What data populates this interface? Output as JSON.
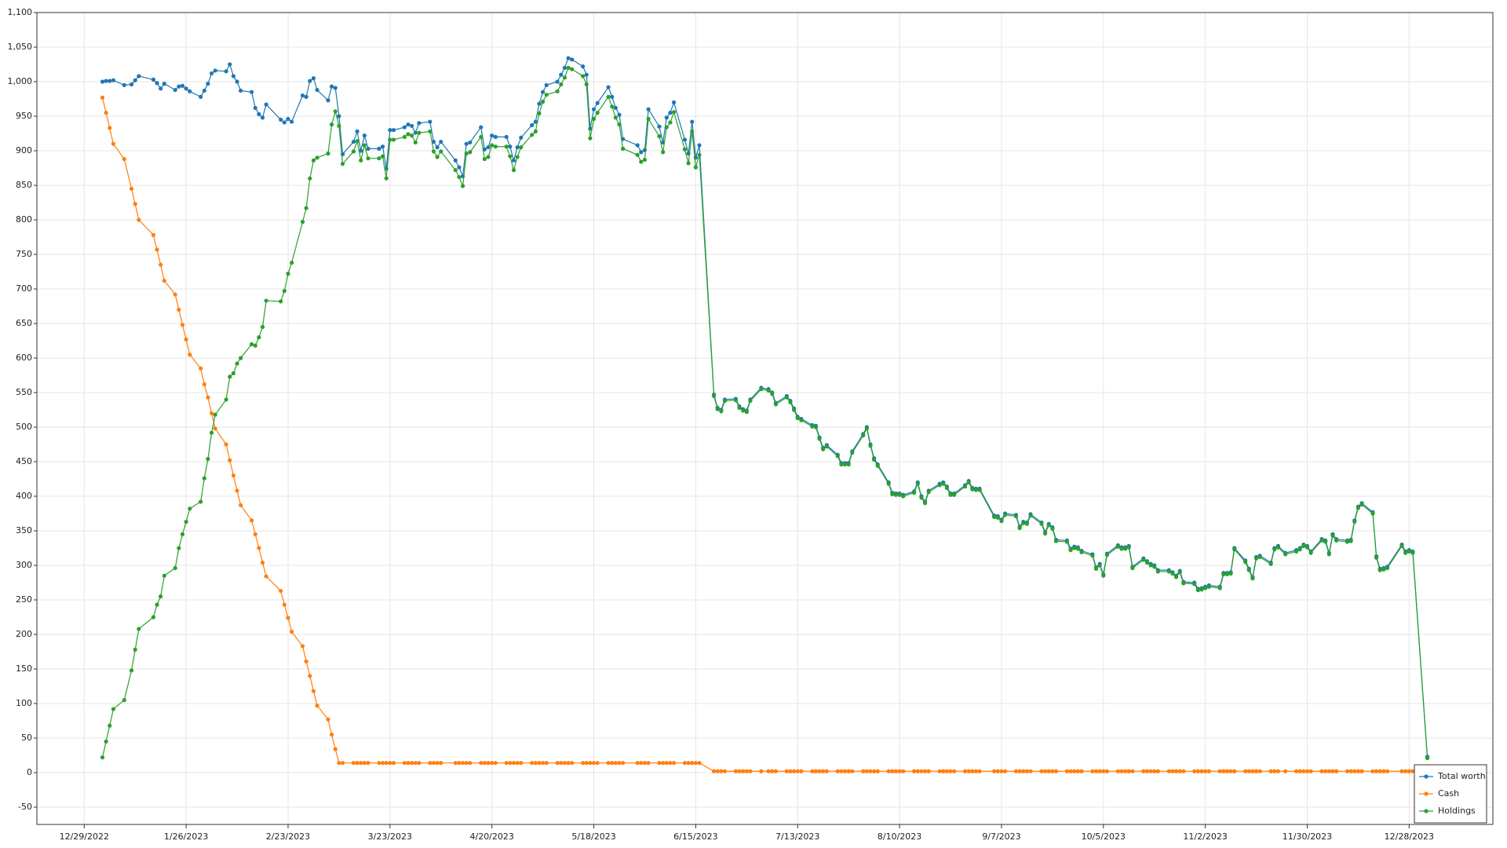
{
  "chart_data": {
    "type": "line",
    "x": [
      "2023-01-03",
      "2023-01-04",
      "2023-01-05",
      "2023-01-06",
      "2023-01-09",
      "2023-01-11",
      "2023-01-12",
      "2023-01-13",
      "2023-01-17",
      "2023-01-18",
      "2023-01-19",
      "2023-01-20",
      "2023-01-23",
      "2023-01-24",
      "2023-01-25",
      "2023-01-26",
      "2023-01-27",
      "2023-01-30",
      "2023-01-31",
      "2023-02-01",
      "2023-02-02",
      "2023-02-03",
      "2023-02-06",
      "2023-02-07",
      "2023-02-08",
      "2023-02-09",
      "2023-02-10",
      "2023-02-13",
      "2023-02-14",
      "2023-02-15",
      "2023-02-16",
      "2023-02-17",
      "2023-02-21",
      "2023-02-22",
      "2023-02-23",
      "2023-02-24",
      "2023-02-27",
      "2023-02-28",
      "2023-03-01",
      "2023-03-02",
      "2023-03-03",
      "2023-03-06",
      "2023-03-07",
      "2023-03-08",
      "2023-03-09",
      "2023-03-10",
      "2023-03-13",
      "2023-03-14",
      "2023-03-15",
      "2023-03-16",
      "2023-03-17",
      "2023-03-20",
      "2023-03-21",
      "2023-03-22",
      "2023-03-23",
      "2023-03-24",
      "2023-03-27",
      "2023-03-28",
      "2023-03-29",
      "2023-03-30",
      "2023-03-31",
      "2023-04-03",
      "2023-04-04",
      "2023-04-05",
      "2023-04-06",
      "2023-04-10",
      "2023-04-11",
      "2023-04-12",
      "2023-04-13",
      "2023-04-14",
      "2023-04-17",
      "2023-04-18",
      "2023-04-19",
      "2023-04-20",
      "2023-04-21",
      "2023-04-24",
      "2023-04-25",
      "2023-04-26",
      "2023-04-27",
      "2023-04-28",
      "2023-05-01",
      "2023-05-02",
      "2023-05-03",
      "2023-05-04",
      "2023-05-05",
      "2023-05-08",
      "2023-05-09",
      "2023-05-10",
      "2023-05-11",
      "2023-05-12",
      "2023-05-15",
      "2023-05-16",
      "2023-05-17",
      "2023-05-18",
      "2023-05-19",
      "2023-05-22",
      "2023-05-23",
      "2023-05-24",
      "2023-05-25",
      "2023-05-26",
      "2023-05-30",
      "2023-05-31",
      "2023-06-01",
      "2023-06-02",
      "2023-06-05",
      "2023-06-06",
      "2023-06-07",
      "2023-06-08",
      "2023-06-09",
      "2023-06-12",
      "2023-06-13",
      "2023-06-14",
      "2023-06-15",
      "2023-06-16",
      "2023-06-20",
      "2023-06-21",
      "2023-06-22",
      "2023-06-23",
      "2023-06-26",
      "2023-06-27",
      "2023-06-28",
      "2023-06-29",
      "2023-06-30",
      "2023-07-03",
      "2023-07-05",
      "2023-07-06",
      "2023-07-07",
      "2023-07-10",
      "2023-07-11",
      "2023-07-12",
      "2023-07-13",
      "2023-07-14",
      "2023-07-17",
      "2023-07-18",
      "2023-07-19",
      "2023-07-20",
      "2023-07-21",
      "2023-07-24",
      "2023-07-25",
      "2023-07-26",
      "2023-07-27",
      "2023-07-28",
      "2023-07-31",
      "2023-08-01",
      "2023-08-02",
      "2023-08-03",
      "2023-08-04",
      "2023-08-07",
      "2023-08-08",
      "2023-08-09",
      "2023-08-10",
      "2023-08-11",
      "2023-08-14",
      "2023-08-15",
      "2023-08-16",
      "2023-08-17",
      "2023-08-18",
      "2023-08-21",
      "2023-08-22",
      "2023-08-23",
      "2023-08-24",
      "2023-08-25",
      "2023-08-28",
      "2023-08-29",
      "2023-08-30",
      "2023-08-31",
      "2023-09-01",
      "2023-09-05",
      "2023-09-06",
      "2023-09-07",
      "2023-09-08",
      "2023-09-11",
      "2023-09-12",
      "2023-09-13",
      "2023-09-14",
      "2023-09-15",
      "2023-09-18",
      "2023-09-19",
      "2023-09-20",
      "2023-09-21",
      "2023-09-22",
      "2023-09-25",
      "2023-09-26",
      "2023-09-27",
      "2023-09-28",
      "2023-09-29",
      "2023-10-02",
      "2023-10-03",
      "2023-10-04",
      "2023-10-05",
      "2023-10-06",
      "2023-10-09",
      "2023-10-10",
      "2023-10-11",
      "2023-10-12",
      "2023-10-13",
      "2023-10-16",
      "2023-10-17",
      "2023-10-18",
      "2023-10-19",
      "2023-10-20",
      "2023-10-23",
      "2023-10-24",
      "2023-10-25",
      "2023-10-26",
      "2023-10-27",
      "2023-10-30",
      "2023-10-31",
      "2023-11-01",
      "2023-11-02",
      "2023-11-03",
      "2023-11-06",
      "2023-11-07",
      "2023-11-08",
      "2023-11-09",
      "2023-11-10",
      "2023-11-13",
      "2023-11-14",
      "2023-11-15",
      "2023-11-16",
      "2023-11-17",
      "2023-11-20",
      "2023-11-21",
      "2023-11-22",
      "2023-11-24",
      "2023-11-27",
      "2023-11-28",
      "2023-11-29",
      "2023-11-30",
      "2023-12-01",
      "2023-12-04",
      "2023-12-05",
      "2023-12-06",
      "2023-12-07",
      "2023-12-08",
      "2023-12-11",
      "2023-12-12",
      "2023-12-13",
      "2023-12-14",
      "2023-12-15",
      "2023-12-18",
      "2023-12-19",
      "2023-12-20",
      "2023-12-21",
      "2023-12-22",
      "2023-12-26",
      "2023-12-27",
      "2023-12-28",
      "2023-12-29",
      "2024-01-02"
    ],
    "series": [
      {
        "name": "Total worth",
        "color": "#1f77b4",
        "values": [
          1000,
          1001,
          1001,
          1002,
          995,
          996,
          1002,
          1008,
          1003,
          998,
          990,
          997,
          988,
          993,
          994,
          990,
          986,
          978,
          987,
          997,
          1012,
          1016,
          1015,
          1025,
          1008,
          1000,
          987,
          985,
          962,
          953,
          948,
          967,
          945,
          941,
          946,
          942,
          980,
          978,
          1001,
          1005,
          988,
          973,
          993,
          991,
          950,
          895,
          913,
          928,
          900,
          922,
          903,
          903,
          906,
          874,
          930,
          930,
          934,
          938,
          936,
          926,
          940,
          942,
          913,
          905,
          913,
          886,
          876,
          863,
          910,
          912,
          934,
          902,
          905,
          922,
          920,
          920,
          906,
          886,
          905,
          919,
          937,
          942,
          968,
          985,
          995,
          1000,
          1010,
          1020,
          1034,
          1032,
          1022,
          1010,
          932,
          960,
          969,
          992,
          978,
          962,
          952,
          917,
          908,
          898,
          901,
          960,
          935,
          912,
          948,
          955,
          970,
          916,
          896,
          942,
          890,
          908,
          547,
          528,
          525,
          540,
          541,
          530,
          526,
          524,
          540,
          557,
          555,
          550,
          535,
          545,
          538,
          527,
          515,
          512,
          503,
          502,
          485,
          470,
          474,
          460,
          448,
          448,
          448,
          465,
          490,
          500,
          475,
          455,
          446,
          420,
          405,
          404,
          404,
          402,
          407,
          420,
          400,
          392,
          408,
          418,
          420,
          414,
          404,
          404,
          416,
          422,
          412,
          411,
          411,
          372,
          371,
          366,
          375,
          373,
          356,
          363,
          362,
          374,
          362,
          348,
          360,
          355,
          337,
          336,
          324,
          327,
          326,
          321,
          316,
          297,
          302,
          287,
          317,
          329,
          326,
          326,
          328,
          298,
          310,
          306,
          302,
          300,
          293,
          293,
          290,
          285,
          292,
          276,
          275,
          266,
          267,
          269,
          271,
          269,
          289,
          289,
          290,
          325,
          307,
          295,
          283,
          312,
          314,
          304,
          325,
          328,
          318,
          322,
          325,
          330,
          328,
          320,
          338,
          336,
          318,
          345,
          338,
          336,
          337,
          365,
          385,
          390,
          377,
          313,
          295,
          296,
          298,
          330,
          320,
          322,
          320,
          23
        ]
      },
      {
        "name": "Cash",
        "color": "#ff7f0e",
        "values": [
          977,
          955,
          933,
          910,
          888,
          845,
          823,
          800,
          778,
          757,
          735,
          712,
          692,
          670,
          648,
          627,
          605,
          585,
          562,
          543,
          520,
          498,
          475,
          452,
          430,
          408,
          387,
          365,
          345,
          325,
          304,
          284,
          263,
          243,
          224,
          204,
          183,
          161,
          140,
          118,
          97,
          77,
          55,
          34,
          14,
          14,
          14,
          14,
          14,
          14,
          14,
          14,
          14,
          14,
          14,
          14,
          14,
          14,
          14,
          14,
          14,
          14,
          14,
          14,
          14,
          14,
          14,
          14,
          14,
          14,
          14,
          14,
          14,
          14,
          14,
          14,
          14,
          14,
          14,
          14,
          14,
          14,
          14,
          14,
          14,
          14,
          14,
          14,
          14,
          14,
          14,
          14,
          14,
          14,
          14,
          14,
          14,
          14,
          14,
          14,
          14,
          14,
          14,
          14,
          14,
          14,
          14,
          14,
          14,
          14,
          14,
          14,
          14,
          14,
          2,
          2,
          2,
          2,
          2,
          2,
          2,
          2,
          2,
          2,
          2,
          2,
          2,
          2,
          2,
          2,
          2,
          2,
          2,
          2,
          2,
          2,
          2,
          2,
          2,
          2,
          2,
          2,
          2,
          2,
          2,
          2,
          2,
          2,
          2,
          2,
          2,
          2,
          2,
          2,
          2,
          2,
          2,
          2,
          2,
          2,
          2,
          2,
          2,
          2,
          2,
          2,
          2,
          2,
          2,
          2,
          2,
          2,
          2,
          2,
          2,
          2,
          2,
          2,
          2,
          2,
          2,
          2,
          2,
          2,
          2,
          2,
          2,
          2,
          2,
          2,
          2,
          2,
          2,
          2,
          2,
          2,
          2,
          2,
          2,
          2,
          2,
          2,
          2,
          2,
          2,
          2,
          2,
          2,
          2,
          2,
          2,
          2,
          2,
          2,
          2,
          2,
          2,
          2,
          2,
          2,
          2,
          2,
          2,
          2,
          2,
          2,
          2,
          2,
          2,
          2,
          2,
          2,
          2,
          2,
          2,
          2,
          2,
          2,
          2,
          2,
          2,
          2,
          2,
          2,
          2,
          2,
          2,
          2,
          2,
          2
        ]
      },
      {
        "name": "Holdings",
        "color": "#2ca02c",
        "values": [
          22,
          45,
          68,
          92,
          105,
          148,
          178,
          208,
          225,
          243,
          255,
          285,
          296,
          325,
          345,
          363,
          382,
          392,
          426,
          454,
          492,
          518,
          540,
          573,
          578,
          592,
          600,
          620,
          618,
          630,
          645,
          683,
          682,
          697,
          722,
          738,
          797,
          817,
          860,
          886,
          890,
          896,
          938,
          957,
          936,
          881,
          899,
          914,
          886,
          908,
          889,
          889,
          892,
          860,
          916,
          916,
          920,
          924,
          922,
          912,
          926,
          928,
          899,
          891,
          899,
          872,
          862,
          849,
          896,
          898,
          920,
          888,
          891,
          908,
          906,
          906,
          892,
          872,
          891,
          905,
          923,
          928,
          954,
          971,
          981,
          986,
          996,
          1006,
          1020,
          1018,
          1008,
          996,
          918,
          946,
          955,
          978,
          964,
          948,
          938,
          903,
          894,
          884,
          887,
          946,
          921,
          898,
          934,
          941,
          956,
          902,
          882,
          928,
          876,
          894,
          545,
          526,
          523,
          538,
          539,
          528,
          524,
          522,
          538,
          555,
          553,
          548,
          533,
          543,
          536,
          525,
          513,
          510,
          501,
          500,
          483,
          468,
          472,
          458,
          446,
          446,
          446,
          463,
          488,
          498,
          473,
          453,
          444,
          418,
          403,
          402,
          402,
          400,
          405,
          418,
          398,
          390,
          406,
          416,
          418,
          412,
          402,
          402,
          414,
          420,
          410,
          409,
          409,
          370,
          369,
          364,
          373,
          371,
          354,
          361,
          360,
          372,
          360,
          346,
          358,
          353,
          335,
          334,
          322,
          325,
          324,
          319,
          314,
          295,
          300,
          285,
          315,
          327,
          324,
          324,
          326,
          296,
          308,
          304,
          300,
          298,
          291,
          291,
          288,
          283,
          290,
          274,
          273,
          264,
          265,
          267,
          269,
          267,
          287,
          287,
          288,
          323,
          305,
          293,
          281,
          310,
          312,
          302,
          323,
          326,
          316,
          320,
          323,
          328,
          326,
          318,
          336,
          334,
          316,
          343,
          336,
          334,
          335,
          363,
          383,
          388,
          375,
          311,
          293,
          294,
          296,
          328,
          318,
          320,
          318,
          21
        ]
      }
    ],
    "xlim": [
      "2022-12-16",
      "2024-01-20"
    ],
    "xticks": [
      {
        "value": "2022-12-29",
        "label": "12/29/2022"
      },
      {
        "value": "2023-01-26",
        "label": "1/26/2023"
      },
      {
        "value": "2023-02-23",
        "label": "2/23/2023"
      },
      {
        "value": "2023-03-23",
        "label": "3/23/2023"
      },
      {
        "value": "2023-04-20",
        "label": "4/20/2023"
      },
      {
        "value": "2023-05-18",
        "label": "5/18/2023"
      },
      {
        "value": "2023-06-15",
        "label": "6/15/2023"
      },
      {
        "value": "2023-07-13",
        "label": "7/13/2023"
      },
      {
        "value": "2023-08-10",
        "label": "8/10/2023"
      },
      {
        "value": "2023-09-07",
        "label": "9/7/2023"
      },
      {
        "value": "2023-10-05",
        "label": "10/5/2023"
      },
      {
        "value": "2023-11-02",
        "label": "11/2/2023"
      },
      {
        "value": "2023-11-30",
        "label": "11/30/2023"
      },
      {
        "value": "2023-12-28",
        "label": "12/28/2023"
      }
    ],
    "ylim": [
      -75,
      1100
    ],
    "yticks": [
      -50,
      0,
      50,
      100,
      150,
      200,
      250,
      300,
      350,
      400,
      450,
      500,
      550,
      600,
      650,
      700,
      750,
      800,
      850,
      900,
      950,
      {
        "value": 1000,
        "label": "1,000"
      },
      {
        "value": 1050,
        "label": "1,050"
      },
      {
        "value": 1100,
        "label": "1,100"
      }
    ],
    "grid": true,
    "legend": "lower right"
  }
}
